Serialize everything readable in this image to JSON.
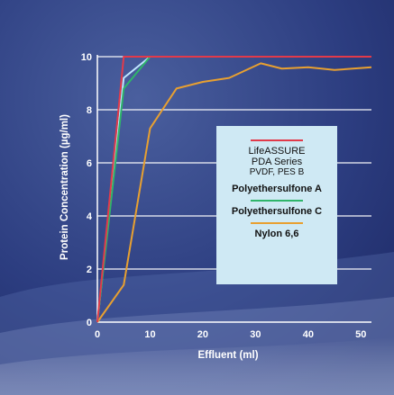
{
  "chart_data": {
    "type": "line",
    "xlabel": "Effluent (ml)",
    "ylabel": "Protein Concentration (µg/ml)",
    "xlim": [
      0,
      52
    ],
    "ylim": [
      0,
      10
    ],
    "xticks": [
      "0",
      "10",
      "20",
      "30",
      "40",
      "50"
    ],
    "yticks": [
      "0",
      "2",
      "4",
      "6",
      "8",
      "10"
    ],
    "grid": "horizontal",
    "legend_position": "center-right",
    "series": [
      {
        "name_lines": [
          "LifeASSURE",
          "PDA Series",
          "PVDF, PES B"
        ],
        "color": "#e23a4a",
        "x": [
          0,
          5,
          52
        ],
        "y": [
          0,
          10,
          10
        ]
      },
      {
        "name": "Polyethersulfone A",
        "color": "#bfe6ff",
        "x": [
          0,
          5,
          10,
          52
        ],
        "y": [
          0,
          9.2,
          10,
          10
        ]
      },
      {
        "name": "Polyethersulfone C",
        "color": "#2fb56a",
        "x": [
          0,
          5,
          10,
          52
        ],
        "y": [
          0,
          8.8,
          10,
          10
        ]
      },
      {
        "name": "Nylon 6,6",
        "color": "#e8a030",
        "x": [
          0,
          5,
          10,
          15,
          20,
          25,
          31,
          35,
          40,
          45,
          52
        ],
        "y": [
          0,
          1.4,
          7.3,
          8.8,
          9.05,
          9.2,
          9.75,
          9.55,
          9.6,
          9.5,
          9.6
        ]
      }
    ]
  },
  "legend": {
    "entry1_line1": "LifeASSURE",
    "entry1_line2": "PDA Series",
    "entry1_line3": "PVDF, PES B",
    "entry2": "Polyethersulfone A",
    "entry3": "Polyethersulfone C",
    "entry4": "Nylon 6,6"
  },
  "colors": {
    "background": "#2a3a7a",
    "gridline": "#ffffff",
    "legend_background": "#cfe9f4"
  }
}
